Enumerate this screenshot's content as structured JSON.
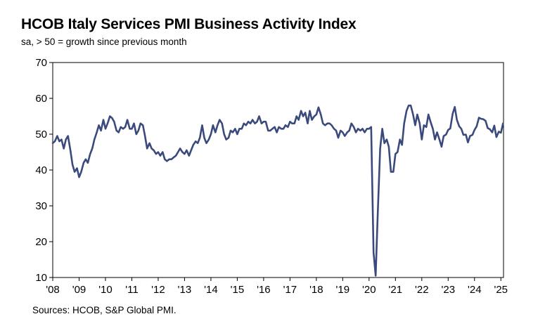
{
  "header": {
    "title": "HCOB Italy Services PMI Business Activity Index",
    "subtitle": "sa, > 50 = growth since previous month"
  },
  "footer": {
    "source": "Sources: HCOB, S&P Global PMI."
  },
  "chart_data": {
    "type": "line",
    "title": "HCOB Italy Services PMI Business Activity Index",
    "subtitle": "sa, > 50 = growth since previous month",
    "xlabel": "",
    "ylabel": "",
    "ylim": [
      10,
      70
    ],
    "yticks": [
      10,
      20,
      30,
      40,
      50,
      60,
      70
    ],
    "xlim": [
      2008.0,
      2025.1
    ],
    "xticks": [
      {
        "value": 2008,
        "label": "'08"
      },
      {
        "value": 2009,
        "label": "'09"
      },
      {
        "value": 2010,
        "label": "'10"
      },
      {
        "value": 2011,
        "label": "'11"
      },
      {
        "value": 2012,
        "label": "'12"
      },
      {
        "value": 2013,
        "label": "'13"
      },
      {
        "value": 2014,
        "label": "'14"
      },
      {
        "value": 2015,
        "label": "'15"
      },
      {
        "value": 2016,
        "label": "'16"
      },
      {
        "value": 2017,
        "label": "'17"
      },
      {
        "value": 2018,
        "label": "'18"
      },
      {
        "value": 2019,
        "label": "'19"
      },
      {
        "value": 2020,
        "label": "'20"
      },
      {
        "value": 2021,
        "label": "'21"
      },
      {
        "value": 2022,
        "label": "'22"
      },
      {
        "value": 2023,
        "label": "'23"
      },
      {
        "value": 2024,
        "label": "'24"
      },
      {
        "value": 2025,
        "label": "'25"
      }
    ],
    "grid": false,
    "legend": "none",
    "line_color": "#3b4a7d",
    "series": [
      {
        "points": [
          [
            2008.0,
            47.5
          ],
          [
            2008.08,
            48.0
          ],
          [
            2008.17,
            49.5
          ],
          [
            2008.25,
            48.0
          ],
          [
            2008.33,
            48.5
          ],
          [
            2008.42,
            46.0
          ],
          [
            2008.5,
            48.5
          ],
          [
            2008.58,
            49.5
          ],
          [
            2008.67,
            45.5
          ],
          [
            2008.75,
            41.5
          ],
          [
            2008.83,
            39.5
          ],
          [
            2008.92,
            40.5
          ],
          [
            2009.0,
            38.0
          ],
          [
            2009.08,
            39.5
          ],
          [
            2009.17,
            42.0
          ],
          [
            2009.25,
            43.0
          ],
          [
            2009.33,
            42.0
          ],
          [
            2009.42,
            44.5
          ],
          [
            2009.5,
            46.0
          ],
          [
            2009.58,
            48.5
          ],
          [
            2009.67,
            50.5
          ],
          [
            2009.75,
            52.5
          ],
          [
            2009.83,
            51.0
          ],
          [
            2009.92,
            54.0
          ],
          [
            2010.0,
            51.5
          ],
          [
            2010.08,
            53.0
          ],
          [
            2010.17,
            55.0
          ],
          [
            2010.25,
            54.5
          ],
          [
            2010.33,
            53.5
          ],
          [
            2010.42,
            51.0
          ],
          [
            2010.5,
            50.5
          ],
          [
            2010.58,
            52.0
          ],
          [
            2010.67,
            51.5
          ],
          [
            2010.75,
            52.0
          ],
          [
            2010.83,
            54.0
          ],
          [
            2010.92,
            51.5
          ],
          [
            2011.0,
            51.5
          ],
          [
            2011.08,
            53.0
          ],
          [
            2011.17,
            50.0
          ],
          [
            2011.25,
            51.0
          ],
          [
            2011.33,
            53.0
          ],
          [
            2011.42,
            52.5
          ],
          [
            2011.5,
            49.5
          ],
          [
            2011.58,
            46.0
          ],
          [
            2011.67,
            47.5
          ],
          [
            2011.75,
            46.0
          ],
          [
            2011.83,
            45.5
          ],
          [
            2011.92,
            44.5
          ],
          [
            2012.0,
            45.0
          ],
          [
            2012.08,
            44.0
          ],
          [
            2012.17,
            45.0
          ],
          [
            2012.25,
            43.0
          ],
          [
            2012.33,
            42.5
          ],
          [
            2012.42,
            43.0
          ],
          [
            2012.5,
            43.0
          ],
          [
            2012.58,
            43.5
          ],
          [
            2012.67,
            44.0
          ],
          [
            2012.75,
            45.0
          ],
          [
            2012.83,
            46.0
          ],
          [
            2012.92,
            45.0
          ],
          [
            2013.0,
            44.5
          ],
          [
            2013.08,
            45.5
          ],
          [
            2013.17,
            44.0
          ],
          [
            2013.25,
            45.5
          ],
          [
            2013.33,
            47.0
          ],
          [
            2013.42,
            48.0
          ],
          [
            2013.5,
            47.5
          ],
          [
            2013.58,
            49.0
          ],
          [
            2013.67,
            52.5
          ],
          [
            2013.75,
            49.0
          ],
          [
            2013.83,
            47.5
          ],
          [
            2013.92,
            48.5
          ],
          [
            2014.0,
            50.0
          ],
          [
            2014.08,
            52.5
          ],
          [
            2014.17,
            50.5
          ],
          [
            2014.25,
            52.5
          ],
          [
            2014.33,
            54.0
          ],
          [
            2014.42,
            53.0
          ],
          [
            2014.5,
            50.0
          ],
          [
            2014.58,
            48.5
          ],
          [
            2014.67,
            49.0
          ],
          [
            2014.75,
            51.0
          ],
          [
            2014.83,
            50.5
          ],
          [
            2014.92,
            51.5
          ],
          [
            2015.0,
            50.0
          ],
          [
            2015.08,
            51.5
          ],
          [
            2015.17,
            51.5
          ],
          [
            2015.25,
            53.0
          ],
          [
            2015.33,
            52.5
          ],
          [
            2015.42,
            53.5
          ],
          [
            2015.5,
            53.0
          ],
          [
            2015.58,
            54.0
          ],
          [
            2015.67,
            53.0
          ],
          [
            2015.75,
            53.5
          ],
          [
            2015.83,
            55.0
          ],
          [
            2015.92,
            53.0
          ],
          [
            2016.0,
            53.5
          ],
          [
            2016.08,
            53.5
          ],
          [
            2016.17,
            51.0
          ],
          [
            2016.25,
            51.0
          ],
          [
            2016.33,
            51.5
          ],
          [
            2016.42,
            52.0
          ],
          [
            2016.5,
            50.5
          ],
          [
            2016.58,
            52.0
          ],
          [
            2016.67,
            51.5
          ],
          [
            2016.75,
            51.5
          ],
          [
            2016.83,
            52.5
          ],
          [
            2016.92,
            52.0
          ],
          [
            2017.0,
            53.5
          ],
          [
            2017.08,
            53.0
          ],
          [
            2017.17,
            53.0
          ],
          [
            2017.25,
            55.0
          ],
          [
            2017.33,
            54.0
          ],
          [
            2017.42,
            56.5
          ],
          [
            2017.5,
            55.0
          ],
          [
            2017.58,
            56.0
          ],
          [
            2017.67,
            53.0
          ],
          [
            2017.75,
            56.5
          ],
          [
            2017.83,
            54.0
          ],
          [
            2017.92,
            55.0
          ],
          [
            2018.0,
            55.5
          ],
          [
            2018.08,
            57.5
          ],
          [
            2018.17,
            55.5
          ],
          [
            2018.25,
            53.0
          ],
          [
            2018.33,
            52.5
          ],
          [
            2018.42,
            53.0
          ],
          [
            2018.5,
            53.0
          ],
          [
            2018.58,
            52.5
          ],
          [
            2018.67,
            51.5
          ],
          [
            2018.75,
            51.0
          ],
          [
            2018.83,
            49.0
          ],
          [
            2018.92,
            51.0
          ],
          [
            2019.0,
            50.5
          ],
          [
            2019.08,
            49.5
          ],
          [
            2019.17,
            50.5
          ],
          [
            2019.25,
            51.0
          ],
          [
            2019.33,
            53.0
          ],
          [
            2019.42,
            52.0
          ],
          [
            2019.5,
            50.5
          ],
          [
            2019.58,
            51.5
          ],
          [
            2019.67,
            51.0
          ],
          [
            2019.75,
            51.5
          ],
          [
            2019.83,
            50.5
          ],
          [
            2019.92,
            51.5
          ],
          [
            2020.0,
            51.5
          ],
          [
            2020.08,
            52.0
          ],
          [
            2020.17,
            17.0
          ],
          [
            2020.25,
            10.5
          ],
          [
            2020.33,
            28.0
          ],
          [
            2020.42,
            46.0
          ],
          [
            2020.5,
            51.5
          ],
          [
            2020.58,
            47.5
          ],
          [
            2020.67,
            48.5
          ],
          [
            2020.75,
            46.5
          ],
          [
            2020.83,
            39.5
          ],
          [
            2020.92,
            39.5
          ],
          [
            2021.0,
            44.5
          ],
          [
            2021.08,
            45.0
          ],
          [
            2021.17,
            48.5
          ],
          [
            2021.25,
            47.0
          ],
          [
            2021.33,
            53.0
          ],
          [
            2021.42,
            56.5
          ],
          [
            2021.5,
            58.0
          ],
          [
            2021.58,
            58.0
          ],
          [
            2021.67,
            55.5
          ],
          [
            2021.75,
            52.5
          ],
          [
            2021.83,
            55.5
          ],
          [
            2021.92,
            53.0
          ],
          [
            2022.0,
            48.5
          ],
          [
            2022.08,
            52.5
          ],
          [
            2022.17,
            52.0
          ],
          [
            2022.25,
            55.5
          ],
          [
            2022.33,
            53.5
          ],
          [
            2022.42,
            51.5
          ],
          [
            2022.5,
            48.5
          ],
          [
            2022.58,
            50.5
          ],
          [
            2022.67,
            48.5
          ],
          [
            2022.75,
            46.5
          ],
          [
            2022.83,
            49.5
          ],
          [
            2022.92,
            49.9
          ],
          [
            2023.0,
            51.2
          ],
          [
            2023.08,
            51.6
          ],
          [
            2023.17,
            55.7
          ],
          [
            2023.25,
            57.6
          ],
          [
            2023.33,
            54.0
          ],
          [
            2023.42,
            52.2
          ],
          [
            2023.5,
            51.5
          ],
          [
            2023.58,
            49.8
          ],
          [
            2023.67,
            49.9
          ],
          [
            2023.75,
            47.7
          ],
          [
            2023.83,
            49.5
          ],
          [
            2023.92,
            49.8
          ],
          [
            2024.0,
            51.2
          ],
          [
            2024.08,
            52.2
          ],
          [
            2024.17,
            54.6
          ],
          [
            2024.25,
            54.3
          ],
          [
            2024.33,
            54.2
          ],
          [
            2024.42,
            53.7
          ],
          [
            2024.5,
            51.7
          ],
          [
            2024.58,
            51.4
          ],
          [
            2024.67,
            50.5
          ],
          [
            2024.75,
            52.4
          ],
          [
            2024.83,
            49.2
          ],
          [
            2024.92,
            50.7
          ],
          [
            2025.0,
            50.4
          ],
          [
            2025.08,
            53.0
          ]
        ]
      }
    ]
  }
}
